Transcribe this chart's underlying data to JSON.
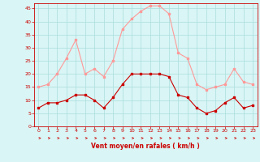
{
  "hours": [
    0,
    1,
    2,
    3,
    4,
    5,
    6,
    7,
    8,
    9,
    10,
    11,
    12,
    13,
    14,
    15,
    16,
    17,
    18,
    19,
    20,
    21,
    22,
    23
  ],
  "wind_mean": [
    7,
    9,
    9,
    10,
    12,
    12,
    10,
    7,
    11,
    16,
    20,
    20,
    20,
    20,
    19,
    12,
    11,
    7,
    5,
    6,
    9,
    11,
    7,
    8
  ],
  "wind_gust": [
    15,
    16,
    20,
    26,
    33,
    20,
    22,
    19,
    25,
    37,
    41,
    44,
    46,
    46,
    43,
    28,
    26,
    16,
    14,
    15,
    16,
    22,
    17,
    16
  ],
  "color_mean": "#cc0000",
  "color_gust": "#ff9999",
  "bg_color": "#d9f5f5",
  "grid_color": "#aadddd",
  "xlabel": "Vent moyen/en rafales ( km/h )",
  "xlabel_color": "#cc0000",
  "tick_color": "#cc0000",
  "axis_color": "#cc0000",
  "ylim": [
    0,
    47
  ],
  "yticks": [
    0,
    5,
    10,
    15,
    20,
    25,
    30,
    35,
    40,
    45
  ],
  "xlim": [
    -0.5,
    23.5
  ]
}
